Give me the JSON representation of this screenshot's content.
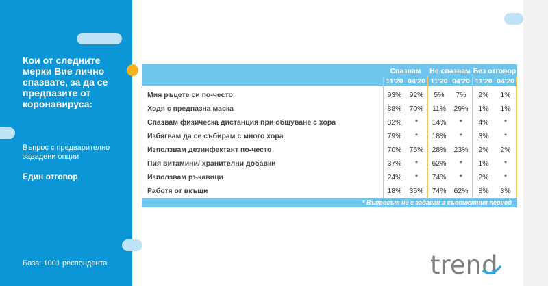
{
  "question": "Кои от следните мерки Вие лично спазвате, за да се предпазите от коронавируса:",
  "subnote": "Въпрос с предварително зададени опции",
  "answer_type": "Един отговор",
  "base": "База: 1001 респондента",
  "logo_text": "trend",
  "colors": {
    "panel": "#0b96d8",
    "header": "#6ec4ec",
    "accent": "#f6b21a"
  },
  "table": {
    "groups": [
      "Спазвам",
      "Не спазвам",
      "Без отговор"
    ],
    "periods": [
      "11'20",
      "04'20",
      "11'20",
      "04'20",
      "11'20",
      "04'20"
    ],
    "rows": [
      {
        "label": "Мия ръцете си по-често",
        "values": [
          "93%",
          "92%",
          "5%",
          "7%",
          "2%",
          "1%"
        ]
      },
      {
        "label": "Ходя с предпазна маска",
        "values": [
          "88%",
          "70%",
          "11%",
          "29%",
          "1%",
          "1%"
        ]
      },
      {
        "label": "Спазвам физическа дистанция при общуване с хора",
        "values": [
          "82%",
          "*",
          "14%",
          "*",
          "4%",
          "*"
        ]
      },
      {
        "label": "Избягвам да се събирам с много хора",
        "values": [
          "79%",
          "*",
          "18%",
          "*",
          "3%",
          "*"
        ]
      },
      {
        "label": "Използвам дезинфектант по-често",
        "values": [
          "70%",
          "75%",
          "28%",
          "23%",
          "2%",
          "2%"
        ]
      },
      {
        "label": "Пия витамини/ хранителни добавки",
        "values": [
          "37%",
          "*",
          "62%",
          "*",
          "1%",
          "*"
        ]
      },
      {
        "label": "Използвам ръкавици",
        "values": [
          "24%",
          "*",
          "74%",
          "*",
          "2%",
          "*"
        ]
      },
      {
        "label": "Работя от вкъщи",
        "values": [
          "18%",
          "35%",
          "74%",
          "62%",
          "8%",
          "3%"
        ]
      }
    ],
    "footnote": "* Въпросът не е задаван в съответния период"
  }
}
